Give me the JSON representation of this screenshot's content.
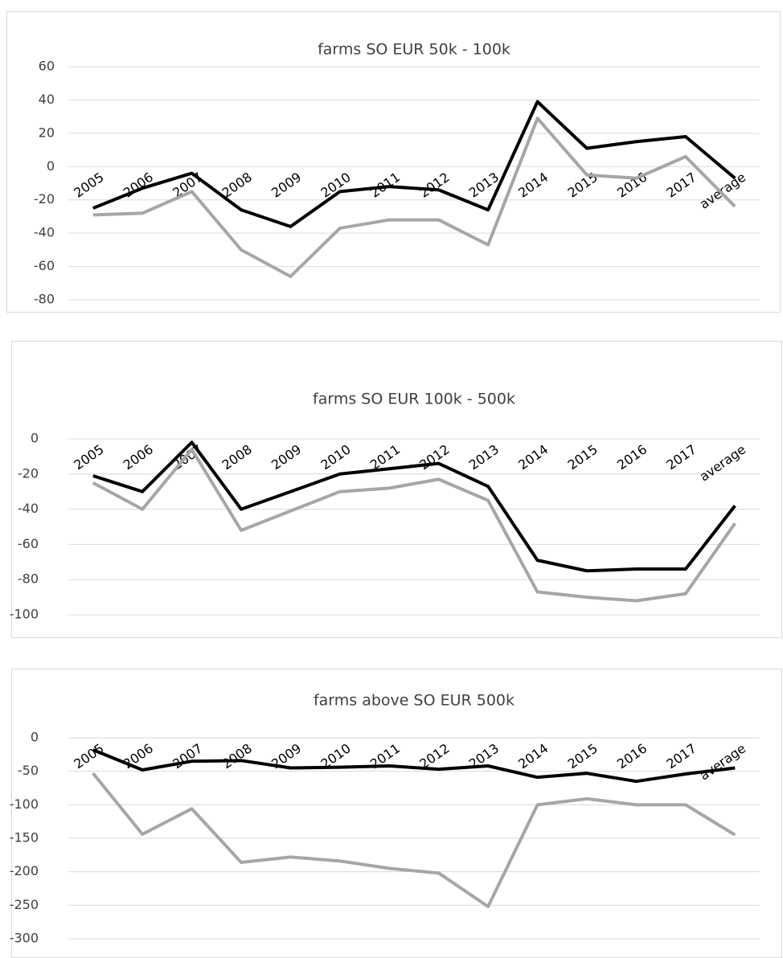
{
  "chart_data": [
    {
      "type": "line",
      "title": "farms SO EUR 50k - 100k",
      "categories": [
        "2005",
        "2006",
        "2007",
        "2008",
        "2009",
        "2010",
        "2011",
        "2012",
        "2013",
        "2014",
        "2015",
        "2016",
        "2017",
        "average"
      ],
      "series": [
        {
          "color": "#000000",
          "values": [
            -25,
            -13,
            -4,
            -26,
            -36,
            -15,
            -12,
            -14,
            -26,
            39,
            11,
            15,
            18,
            -7
          ]
        },
        {
          "color": "#a6a6a6",
          "values": [
            -29,
            -28,
            -15,
            -50,
            -66,
            -37,
            -32,
            -32,
            -47,
            29,
            -5,
            -7,
            6,
            -24
          ]
        }
      ],
      "ylim": [
        -80,
        60
      ],
      "yticks": [
        -80,
        -60,
        -40,
        -20,
        0,
        20,
        40,
        60
      ],
      "grid": true
    },
    {
      "type": "line",
      "title": "farms SO EUR 100k - 500k",
      "categories": [
        "2005",
        "2006",
        "2007",
        "2008",
        "2009",
        "2010",
        "2011",
        "2012",
        "2013",
        "2014",
        "2015",
        "2016",
        "2017",
        "average"
      ],
      "series": [
        {
          "color": "#000000",
          "values": [
            -21,
            -30,
            -2,
            -40,
            -30,
            -20,
            -17,
            -14,
            -27,
            -69,
            -75,
            -74,
            -74,
            -38
          ]
        },
        {
          "color": "#a6a6a6",
          "values": [
            -25,
            -40,
            -6,
            -52,
            -41,
            -30,
            -28,
            -23,
            -35,
            -87,
            -90,
            -92,
            -88,
            -48
          ]
        }
      ],
      "ylim": [
        -100,
        0
      ],
      "yticks": [
        -100,
        -80,
        -60,
        -40,
        -20,
        0
      ],
      "grid": true
    },
    {
      "type": "line",
      "title": "farms above SO EUR 500k",
      "categories": [
        "2005",
        "2006",
        "2007",
        "2008",
        "2009",
        "2010",
        "2011",
        "2012",
        "2013",
        "2014",
        "2015",
        "2016",
        "2017",
        "average"
      ],
      "series": [
        {
          "color": "#000000",
          "values": [
            -18,
            -48,
            -35,
            -34,
            -45,
            -44,
            -42,
            -47,
            -42,
            -59,
            -53,
            -65,
            -54,
            -45
          ]
        },
        {
          "color": "#a6a6a6",
          "values": [
            -53,
            -144,
            -106,
            -186,
            -178,
            -184,
            -195,
            -202,
            -252,
            -100,
            -91,
            -100,
            -100,
            -145
          ]
        }
      ],
      "ylim": [
        -300,
        0
      ],
      "yticks": [
        -300,
        -250,
        -200,
        -150,
        -100,
        -50,
        0
      ],
      "grid": true
    }
  ]
}
